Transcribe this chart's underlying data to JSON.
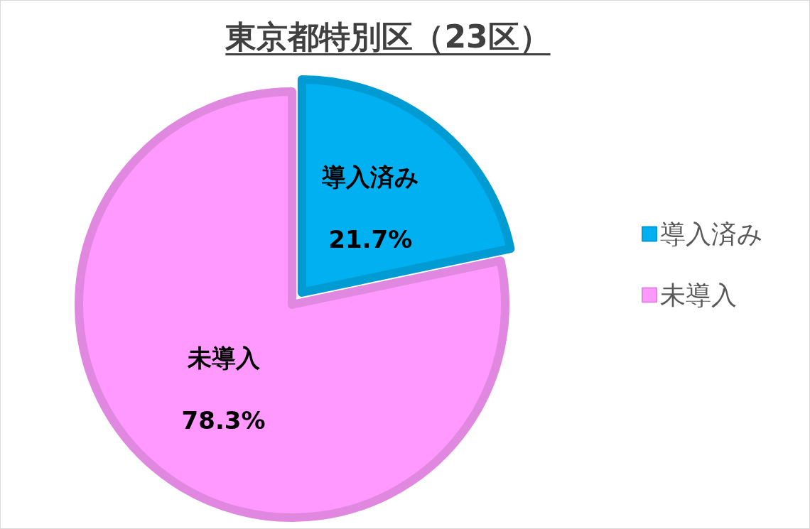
{
  "chart_data": {
    "type": "pie",
    "title": "東京都特別区（23区）",
    "categories": [
      "導入済み",
      "未導入"
    ],
    "values": [
      21.7,
      78.3
    ],
    "value_labels": [
      "21.7%",
      "78.3%"
    ],
    "colors": [
      "#00b0f0",
      "#ff99ff"
    ],
    "legend": "right"
  }
}
